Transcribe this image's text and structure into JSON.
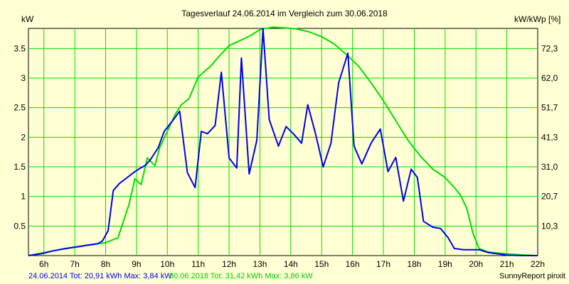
{
  "chart_data": {
    "type": "line",
    "title": "Tagesverlauf 24.06.2014 im Vergleich zum 30.06.2018",
    "ylabel_left": "kW",
    "ylabel_right": "kW/kWp [%]",
    "x_ticks": [
      "6h",
      "7h",
      "8h",
      "9h",
      "10h",
      "11h",
      "12h",
      "13h",
      "14h",
      "15h",
      "16h",
      "17h",
      "18h",
      "19h",
      "20h",
      "21h",
      "22h"
    ],
    "xlim": [
      5.5,
      22.0
    ],
    "ylim": [
      0,
      3.84
    ],
    "y_ticks_left": [
      "0.5",
      "1",
      "1.5",
      "2",
      "2.5",
      "3",
      "3.5"
    ],
    "y_ticks_right": [
      "10,3",
      "20,7",
      "31,0",
      "41,3",
      "51,7",
      "62,0",
      "72,3"
    ],
    "grid": true,
    "series": [
      {
        "name": "24.06.2014 Tot: 20,91 kWh Max: 3,84 kW",
        "color": "#0000ee",
        "x": [
          5.5,
          5.9,
          6.3,
          6.7,
          7.1,
          7.45,
          7.75,
          7.9,
          8.08,
          8.25,
          8.45,
          8.7,
          8.95,
          9.1,
          9.3,
          9.45,
          9.7,
          9.9,
          10.2,
          10.4,
          10.65,
          10.9,
          11.1,
          11.3,
          11.55,
          11.75,
          12.0,
          12.25,
          12.4,
          12.65,
          12.9,
          13.1,
          13.3,
          13.6,
          13.85,
          14.1,
          14.35,
          14.55,
          14.8,
          15.05,
          15.3,
          15.55,
          15.85,
          16.05,
          16.3,
          16.6,
          16.9,
          17.15,
          17.4,
          17.65,
          17.9,
          18.1,
          18.3,
          18.6,
          18.85,
          19.1,
          19.3,
          19.6,
          19.9,
          20.1,
          20.4,
          20.7,
          21.0,
          21.5,
          22.0
        ],
        "y": [
          0.0,
          0.03,
          0.08,
          0.12,
          0.15,
          0.18,
          0.2,
          0.25,
          0.42,
          1.1,
          1.22,
          1.32,
          1.42,
          1.47,
          1.53,
          1.62,
          1.82,
          2.1,
          2.3,
          2.44,
          1.4,
          1.15,
          2.1,
          2.06,
          2.2,
          3.1,
          1.65,
          1.48,
          3.34,
          1.38,
          1.95,
          3.84,
          2.3,
          1.85,
          2.18,
          2.05,
          1.9,
          2.55,
          2.06,
          1.5,
          1.9,
          2.92,
          3.42,
          1.85,
          1.55,
          1.9,
          2.14,
          1.42,
          1.66,
          0.92,
          1.46,
          1.32,
          0.58,
          0.48,
          0.46,
          0.3,
          0.12,
          0.1,
          0.1,
          0.1,
          0.05,
          0.03,
          0.01,
          0.0,
          0.0
        ]
      },
      {
        "name": "30.06.2018 Tot: 31,42 kWh Max: 3,86 kW",
        "color": "#00dd00",
        "x": [
          5.5,
          6.0,
          6.5,
          7.0,
          7.5,
          8.0,
          8.4,
          8.75,
          8.95,
          9.15,
          9.35,
          9.6,
          9.75,
          10.0,
          10.25,
          10.45,
          10.7,
          11.0,
          11.4,
          11.7,
          12.0,
          12.3,
          12.7,
          13.0,
          13.4,
          13.8,
          14.2,
          14.6,
          15.0,
          15.4,
          15.8,
          16.2,
          16.6,
          17.0,
          17.4,
          17.8,
          18.2,
          18.6,
          19.0,
          19.3,
          19.5,
          19.7,
          19.9,
          20.1,
          20.4,
          20.8,
          21.2,
          21.6,
          22.0
        ],
        "y": [
          0.0,
          0.05,
          0.1,
          0.14,
          0.18,
          0.22,
          0.3,
          0.85,
          1.3,
          1.2,
          1.65,
          1.52,
          1.82,
          2.1,
          2.38,
          2.55,
          2.65,
          3.02,
          3.2,
          3.38,
          3.55,
          3.62,
          3.72,
          3.82,
          3.86,
          3.85,
          3.83,
          3.78,
          3.7,
          3.58,
          3.4,
          3.2,
          2.92,
          2.62,
          2.28,
          1.95,
          1.68,
          1.46,
          1.32,
          1.15,
          1.02,
          0.8,
          0.38,
          0.12,
          0.06,
          0.04,
          0.02,
          0.01,
          0.0
        ]
      }
    ]
  },
  "footer_brand": "SunnyReport pinxit",
  "colors": {
    "background": "#ffffd3",
    "grid": "#00dd00",
    "series1": "#0000ee",
    "series2": "#00dd00"
  }
}
